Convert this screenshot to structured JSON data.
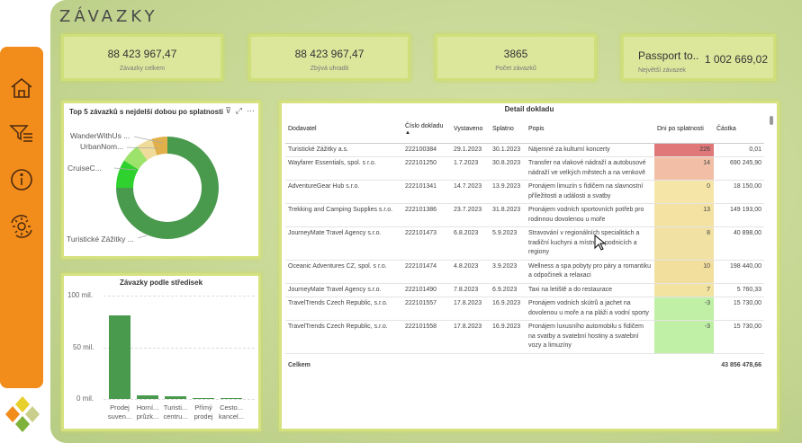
{
  "page_title": "ZÁVAZKY",
  "kpis": [
    {
      "value": "88 423 967,47",
      "label": "Závazky celkem"
    },
    {
      "value": "88 423 967,47",
      "label": "Zbývá uhradit"
    },
    {
      "value": "3865",
      "label": "Počet závazků"
    },
    {
      "value_left": "Passport to..",
      "value_right": "1 002 669,02",
      "label": "Největší závazek"
    }
  ],
  "nav": [
    {
      "icon": "home-icon"
    },
    {
      "icon": "filter-list-icon"
    },
    {
      "icon": "info-icon"
    },
    {
      "icon": "settings-sync-icon"
    }
  ],
  "donut": {
    "title": "Top 5 závazků s nejdelší dobou po splatnosti",
    "labels": [
      "WanderWithUs ...",
      "UrbanNom...",
      "CruiseC...",
      "Turistické Zážitky ..."
    ],
    "colors": [
      "#4a9a4e",
      "#2fd12f",
      "#9de36b",
      "#f0dc9a",
      "#e1b04a"
    ]
  },
  "bars": {
    "title": "Závazky podle středisek",
    "y_ticks": [
      "100 mil.",
      "50 mil.",
      "0 mil."
    ],
    "labels": [
      [
        "Prodej",
        "suven..."
      ],
      [
        "Horní...",
        "průzk..."
      ],
      [
        "Turisti...",
        "centru..."
      ],
      [
        "Přímý",
        "prodej"
      ],
      [
        "Cesto...",
        "kancel..."
      ]
    ]
  },
  "chart_data": [
    {
      "type": "pie",
      "title": "Top 5 závazků s nejdelší dobou po splatnosti",
      "categories": [
        "Turistické Zážitky ...",
        "CruiseC...",
        "",
        "UrbanNom...",
        "WanderWithUs ..."
      ],
      "values": [
        75,
        9,
        6,
        5,
        5
      ]
    },
    {
      "type": "bar",
      "title": "Závazky podle středisek",
      "categories": [
        "Prodej suven...",
        "Horní... průzk...",
        "Turisti... centru...",
        "Přímý prodej",
        "Cesto... kancel..."
      ],
      "values": [
        81,
        3.2,
        2.5,
        1.1,
        0.9
      ],
      "ylim": [
        0,
        100
      ]
    }
  ],
  "table": {
    "title": "Detail dokladu",
    "columns": [
      "Dodavatel",
      "Číslo dokladu",
      "Vystaveno",
      "Splatno",
      "Popis",
      "Dni po splatnosti",
      "Částka"
    ],
    "rows": [
      [
        "Turistické Zážitky a.s.",
        "222100384",
        "29.1.2023",
        "30.1.2023",
        "Nájemné za kulturní koncerty",
        "226",
        "0,01"
      ],
      [
        "Wayfarer Essentials, spol. s r.o.",
        "222101250",
        "1.7.2023",
        "30.8.2023",
        "Transfer na vlakové nádraží a autobusové nádraží ve velkých městech a na venkově",
        "14",
        "690 245,90"
      ],
      [
        "AdventureGear Hub s.r.o.",
        "222101341",
        "14.7.2023",
        "13.9.2023",
        "Pronájem limuzín s řidičem na slavnostní příležitosti a události a svatby",
        "0",
        "18 150,00"
      ],
      [
        "Trekking and Camping Supplies s.r.o.",
        "222101386",
        "23.7.2023",
        "31.8.2023",
        "Pronájem vodních sportovních potřeb pro rodinnou dovolenou u moře",
        "13",
        "149 193,00"
      ],
      [
        "JourneyMate Travel Agency s.r.o.",
        "222101473",
        "6.8.2023",
        "5.9.2023",
        "Stravování v regionálních specialitách a tradiční kuchyni a místních podnicích a regiony",
        "8",
        "40 898,00"
      ],
      [
        "Oceanic Adventures CZ, spol. s r.o.",
        "222101474",
        "4.8.2023",
        "3.9.2023",
        "Wellness a spa pobyty pro páry a romantiku a odpočinek a relaxaci",
        "10",
        "198 440,00"
      ],
      [
        "JourneyMate Travel Agency s.r.o.",
        "222101490",
        "7.8.2023",
        "6.9.2023",
        "Taxi na letiště a do restaurace",
        "7",
        "5 760,33"
      ],
      [
        "TravelTrends Czech Republic, s.r.o.",
        "222101557",
        "17.8.2023",
        "16.9.2023",
        "Pronájem vodních skútrů a jachet na dovolenou u moře a na pláži a vodní sporty",
        "-3",
        "15 730,00"
      ],
      [
        "TravelTrends Czech Republic, s.r.o.",
        "222101558",
        "17.8.2023",
        "16.9.2023",
        "Pronájem luxusního automobilu s řidičem na svatby a svatební hostiny a svatební vozy a limuzíny",
        "-3",
        "15 730,00"
      ]
    ],
    "day_colors": [
      "#e0787a",
      "#f2bfa6",
      "#f5e6a8",
      "#f3e2a1",
      "#f1e1a3",
      "#f3df9d",
      "#f2e3a0",
      "#bff0a6",
      "#bff0a6"
    ],
    "total_label": "Celkem",
    "total_value": "43 856 478,66"
  }
}
